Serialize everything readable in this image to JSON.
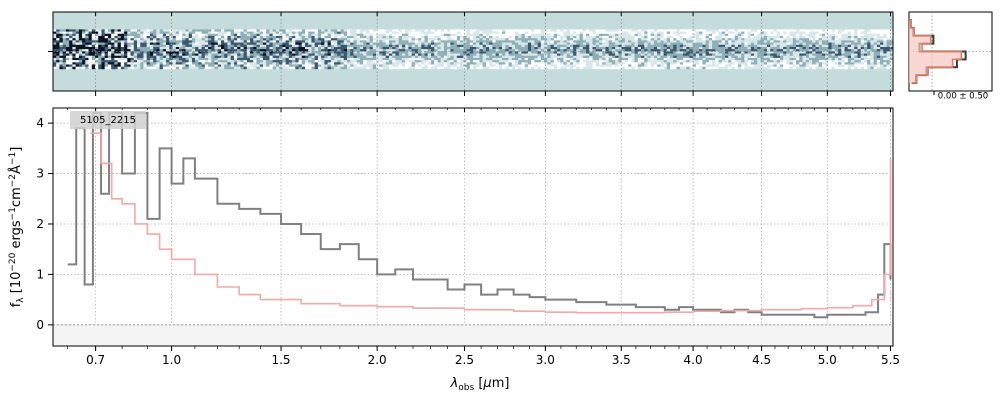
{
  "chart_data": [
    {
      "type": "heatmap",
      "panel": "2d-spectrum",
      "colormap": "bone-cyan",
      "background_color": "#c4dcdc",
      "x_ticks": [
        "0.7",
        "1.0",
        "1.5",
        "2.0",
        "2.5",
        "3.0",
        "3.5",
        "4.0",
        "4.5",
        "5.0",
        "5.5"
      ],
      "grid": true
    },
    {
      "type": "line",
      "panel": "1d-spectrum",
      "label": "5105_2215",
      "xlabel": "λ_obs [μm]",
      "ylabel": "f_λ [10^-20 ergs^-1 cm^-2 Å^-1]",
      "xlim": [
        0.55,
        5.52
      ],
      "ylim": [
        -0.42,
        4.3
      ],
      "x_ticks": [
        "0.7",
        "1.0",
        "1.5",
        "2.0",
        "2.5",
        "3.0",
        "3.5",
        "4.0",
        "4.5",
        "5.0",
        "5.5"
      ],
      "y_ticks": [
        "0",
        "1",
        "2",
        "3",
        "4"
      ],
      "grid": true,
      "series": [
        {
          "role": "data",
          "color": "#808080",
          "x": [
            0.6,
            0.63,
            0.66,
            0.69,
            0.72,
            0.75,
            0.8,
            0.85,
            0.9,
            0.95,
            1.0,
            1.05,
            1.1,
            1.2,
            1.3,
            1.4,
            1.5,
            1.6,
            1.7,
            1.8,
            1.9,
            2.0,
            2.1,
            2.2,
            2.3,
            2.4,
            2.5,
            2.6,
            2.7,
            2.8,
            2.9,
            3.0,
            3.1,
            3.2,
            3.3,
            3.4,
            3.5,
            3.6,
            3.7,
            3.8,
            3.9,
            4.0,
            4.1,
            4.2,
            4.3,
            4.4,
            4.5,
            4.6,
            4.7,
            4.8,
            4.9,
            5.0,
            5.1,
            5.2,
            5.3,
            5.4,
            5.45,
            5.5
          ],
          "y": [
            1.2,
            3.9,
            0.8,
            4.2,
            2.6,
            4.2,
            3.0,
            4.2,
            2.1,
            3.5,
            2.8,
            3.3,
            2.9,
            2.4,
            2.3,
            2.2,
            2.0,
            1.8,
            1.5,
            1.6,
            1.3,
            1.0,
            1.1,
            0.9,
            0.9,
            0.7,
            0.8,
            0.6,
            0.7,
            0.6,
            0.55,
            0.5,
            0.5,
            0.45,
            0.45,
            0.4,
            0.4,
            0.35,
            0.35,
            0.3,
            0.35,
            0.3,
            0.3,
            0.25,
            0.3,
            0.25,
            0.2,
            0.2,
            0.2,
            0.2,
            0.15,
            0.2,
            0.2,
            0.2,
            0.25,
            0.6,
            1.6,
            0.9
          ]
        },
        {
          "role": "model",
          "color": "#f4a8a8",
          "x": [
            0.68,
            0.72,
            0.76,
            0.8,
            0.85,
            0.9,
            0.95,
            1.0,
            1.1,
            1.2,
            1.3,
            1.4,
            1.6,
            1.8,
            2.0,
            2.2,
            2.5,
            2.8,
            3.0,
            3.2,
            3.5,
            3.8,
            4.0,
            4.2,
            4.5,
            4.8,
            5.0,
            5.2,
            5.35,
            5.45,
            5.5
          ],
          "y": [
            3.8,
            3.2,
            2.5,
            2.4,
            2.0,
            1.8,
            1.5,
            1.3,
            1.0,
            0.75,
            0.6,
            0.5,
            0.42,
            0.38,
            0.36,
            0.33,
            0.3,
            0.27,
            0.25,
            0.24,
            0.24,
            0.25,
            0.27,
            0.28,
            0.3,
            0.32,
            0.34,
            0.38,
            0.5,
            1.0,
            3.3
          ]
        }
      ]
    },
    {
      "type": "line",
      "panel": "spatial-profile",
      "annotation": "0.00 ± 0.50",
      "series": [
        {
          "role": "profile-data",
          "color": "#3a3a3a",
          "values": [
            0.02,
            0.05,
            0.28,
            0.12,
            0.65,
            0.55,
            0.2,
            0.08,
            0.03
          ]
        },
        {
          "role": "profile-model",
          "color": "#e07a5f",
          "values": [
            0.02,
            0.06,
            0.25,
            0.15,
            0.6,
            0.5,
            0.22,
            0.09,
            0.03
          ]
        }
      ]
    }
  ]
}
